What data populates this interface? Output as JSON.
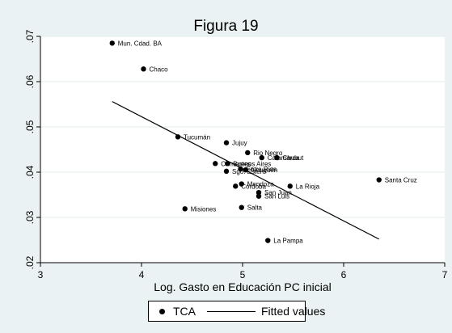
{
  "chart_data": {
    "type": "scatter",
    "title": "Figura 19",
    "xlabel": "Log. Gasto en Educación PC inicial",
    "ylabel": "",
    "xlim": [
      3,
      7
    ],
    "ylim": [
      0.02,
      0.07
    ],
    "x_ticks": [
      "3",
      "4",
      "5",
      "6",
      "7"
    ],
    "y_ticks": [
      ".02",
      ".03",
      ".04",
      ".05",
      ".06",
      ".07"
    ],
    "x_tick_values": [
      3,
      4,
      5,
      6,
      7
    ],
    "y_tick_values": [
      0.02,
      0.03,
      0.04,
      0.05,
      0.06,
      0.07
    ],
    "grid": true,
    "legend": [
      "TCA",
      "Fitted values"
    ],
    "legend_position": "bottom",
    "points": [
      {
        "label": "Mun. Cdad. BA",
        "x": 3.71,
        "y": 0.0685
      },
      {
        "label": "Chaco",
        "x": 4.02,
        "y": 0.0628
      },
      {
        "label": "Tucumán",
        "x": 4.36,
        "y": 0.0478
      },
      {
        "label": "Jujuy",
        "x": 4.84,
        "y": 0.0465
      },
      {
        "label": "Rio Negro",
        "x": 5.05,
        "y": 0.0443
      },
      {
        "label": "Catamarca",
        "x": 5.19,
        "y": 0.0432
      },
      {
        "label": "Chubut",
        "x": 5.34,
        "y": 0.0432
      },
      {
        "label": "Corrientes",
        "x": 4.73,
        "y": 0.0419
      },
      {
        "label": "Buenos Aires",
        "x": 4.85,
        "y": 0.0419
      },
      {
        "label": "Sgo. Estero",
        "x": 4.84,
        "y": 0.0402
      },
      {
        "label": "Entre Rios",
        "x": 4.98,
        "y": 0.0407
      },
      {
        "label": "Neuquén",
        "x": 5.03,
        "y": 0.0405
      },
      {
        "label": "Misiones",
        "x": 4.43,
        "y": 0.0319
      },
      {
        "label": "Córdoba",
        "x": 4.93,
        "y": 0.0369
      },
      {
        "label": "Mendoza",
        "x": 4.99,
        "y": 0.0374
      },
      {
        "label": "San Juan",
        "x": 5.16,
        "y": 0.0355
      },
      {
        "label": "San Luis",
        "x": 5.16,
        "y": 0.0347
      },
      {
        "label": "Salta",
        "x": 4.99,
        "y": 0.0322
      },
      {
        "label": "La Rioja",
        "x": 5.47,
        "y": 0.0369
      },
      {
        "label": "Santa Cruz",
        "x": 6.35,
        "y": 0.0383
      },
      {
        "label": "La Pampa",
        "x": 5.25,
        "y": 0.0249
      }
    ],
    "fitted_line": {
      "name": "Fitted values",
      "x": [
        3.71,
        6.35
      ],
      "y": [
        0.0556,
        0.0252
      ]
    }
  }
}
